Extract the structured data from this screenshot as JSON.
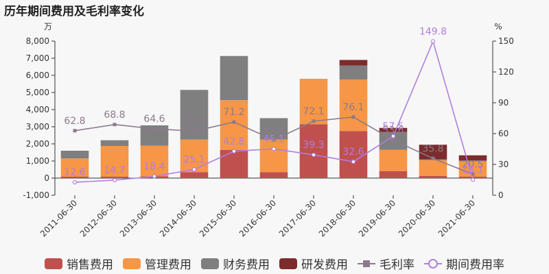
{
  "title": "历年期间费用及毛利率变化",
  "chart_data": {
    "type": "bar",
    "stacked": true,
    "categories": [
      "2011-06-30",
      "2012-06-30",
      "2013-06-30",
      "2014-06-30",
      "2015-06-30",
      "2016-06-30",
      "2017-06-30",
      "2018-06-30",
      "2019-06-30",
      "2020-06-30",
      "2021-06-30"
    ],
    "left_axis": {
      "unit": "万",
      "ylim": [
        -1000,
        8000
      ],
      "ticks": [
        "-1,000",
        "0",
        "1,000",
        "2,000",
        "3,000",
        "4,000",
        "5,000",
        "6,000",
        "7,000",
        "8,000"
      ]
    },
    "right_axis": {
      "unit": "%",
      "ylim": [
        0,
        150
      ],
      "ticks": [
        "0",
        "30",
        "60",
        "90",
        "120",
        "150"
      ]
    },
    "series": [
      {
        "name": "销售费用",
        "kind": "bar",
        "color": "#c0504d",
        "values": [
          80,
          80,
          100,
          350,
          1650,
          350,
          3150,
          2750,
          400,
          130,
          80
        ]
      },
      {
        "name": "管理费用",
        "kind": "bar",
        "color": "#f79646",
        "values": [
          1070,
          1800,
          1800,
          1900,
          2900,
          1900,
          2650,
          3000,
          1250,
          920,
          900
        ]
      },
      {
        "name": "财务费用",
        "kind": "bar",
        "color": "#7f7f7f",
        "values": [
          450,
          330,
          1180,
          2900,
          2580,
          1250,
          0,
          820,
          1050,
          50,
          50
        ]
      },
      {
        "name": "研发费用",
        "kind": "bar",
        "color": "#7b2c2c",
        "values": [
          0,
          0,
          0,
          0,
          0,
          0,
          0,
          330,
          230,
          850,
          300
        ]
      },
      {
        "name": "毛利率",
        "kind": "line",
        "axis": "right",
        "color": "#8c7a8c",
        "marker": "square",
        "values": [
          62.8,
          68.8,
          64.6,
          62.4,
          71.2,
          53.7,
          72.1,
          76.1,
          53.6,
          35.8,
          20.5
        ],
        "labels": [
          "62.8",
          "68.8",
          "64.6",
          "62.4",
          "71.2",
          "53.7",
          "72.1",
          "76.1",
          "53.6",
          "35.8",
          "20.5"
        ]
      },
      {
        "name": "期间费用率",
        "kind": "line",
        "axis": "right",
        "color": "#b07ee0",
        "marker": "circle",
        "values": [
          12.6,
          14.7,
          18.4,
          25.1,
          42.8,
          45.1,
          39.3,
          32.6,
          57.5,
          149.8,
          15.1
        ],
        "labels": [
          "12.6",
          "14.7",
          "18.4",
          "25.1",
          "42.8",
          "45.1",
          "39.3",
          "32.6",
          "57.5",
          "149.8",
          "15.1"
        ]
      }
    ],
    "grid": false,
    "legend_position": "bottom"
  }
}
